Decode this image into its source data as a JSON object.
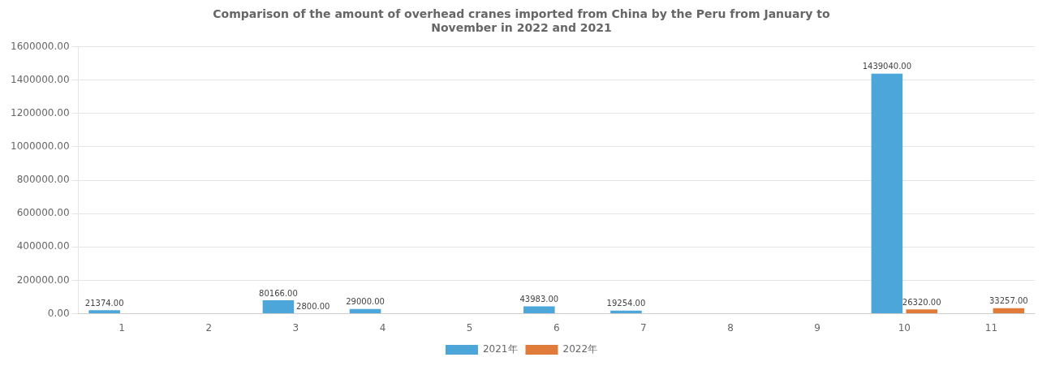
{
  "chart_data": {
    "type": "bar",
    "title": "Comparison of the amount of overhead cranes imported from China by the Peru from January to\nNovember in 2022 and 2021",
    "categories": [
      1,
      2,
      3,
      4,
      5,
      6,
      7,
      8,
      9,
      10,
      11
    ],
    "series": [
      {
        "name": "2021年",
        "color": "#4da6d9",
        "values": [
          21374.0,
          0,
          80166.0,
          29000.0,
          0,
          43983.0,
          19254.0,
          0,
          0,
          1439040.0,
          0
        ],
        "value_labels": [
          "21374.00",
          null,
          "80166.00",
          "29000.00",
          null,
          "43983.00",
          "19254.00",
          null,
          null,
          "1439040.00",
          null
        ]
      },
      {
        "name": "2022年",
        "color": "#e07b39",
        "values": [
          0,
          0,
          2800.0,
          0,
          0,
          0,
          0,
          0,
          0,
          26320.0,
          33257.0
        ],
        "value_labels": [
          null,
          null,
          "2800.00",
          null,
          null,
          null,
          null,
          null,
          null,
          "26320.00",
          "33257.00"
        ]
      }
    ],
    "ylim": [
      0,
      1600000
    ],
    "yticks": [
      {
        "value": 0,
        "label": "0.00"
      },
      {
        "value": 200000,
        "label": "200000.00"
      },
      {
        "value": 400000,
        "label": "400000.00"
      },
      {
        "value": 600000,
        "label": "600000.00"
      },
      {
        "value": 800000,
        "label": "800000.00"
      },
      {
        "value": 1000000,
        "label": "1000000.00"
      },
      {
        "value": 1200000,
        "label": "1200000.00"
      },
      {
        "value": 1400000,
        "label": "1400000.00"
      },
      {
        "value": 1600000,
        "label": "1600000.00"
      }
    ],
    "grid": true,
    "legend": "bottom",
    "data_labels": true
  }
}
